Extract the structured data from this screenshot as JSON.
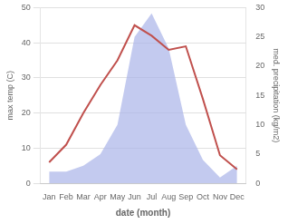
{
  "chart_data": {
    "type": "line",
    "categories": [
      "Jan",
      "Feb",
      "Mar",
      "Apr",
      "May",
      "Jun",
      "Jul",
      "Aug",
      "Sep",
      "Oct",
      "Nov",
      "Dec"
    ],
    "series": [
      {
        "type": "area",
        "color": "#aab4e8",
        "axis": "y2",
        "values": [
          2,
          2,
          3,
          5,
          10,
          25,
          29,
          23,
          10,
          4,
          1,
          3
        ]
      },
      {
        "type": "line",
        "color": "#c0504d",
        "values": [
          6,
          11,
          20,
          28,
          35,
          45,
          42,
          38,
          39,
          24,
          8,
          4
        ]
      }
    ],
    "xlabel": "date (month)",
    "ylabel": "max temp (C)",
    "y2label": "med. precipitation (kg/m2)",
    "ylim": [
      0,
      50
    ],
    "yticks": [
      0,
      10,
      20,
      30,
      40,
      50
    ],
    "y2lim": [
      0,
      30
    ],
    "y2ticks": [
      0,
      5,
      10,
      15,
      20,
      25,
      30
    ],
    "grid": true
  }
}
